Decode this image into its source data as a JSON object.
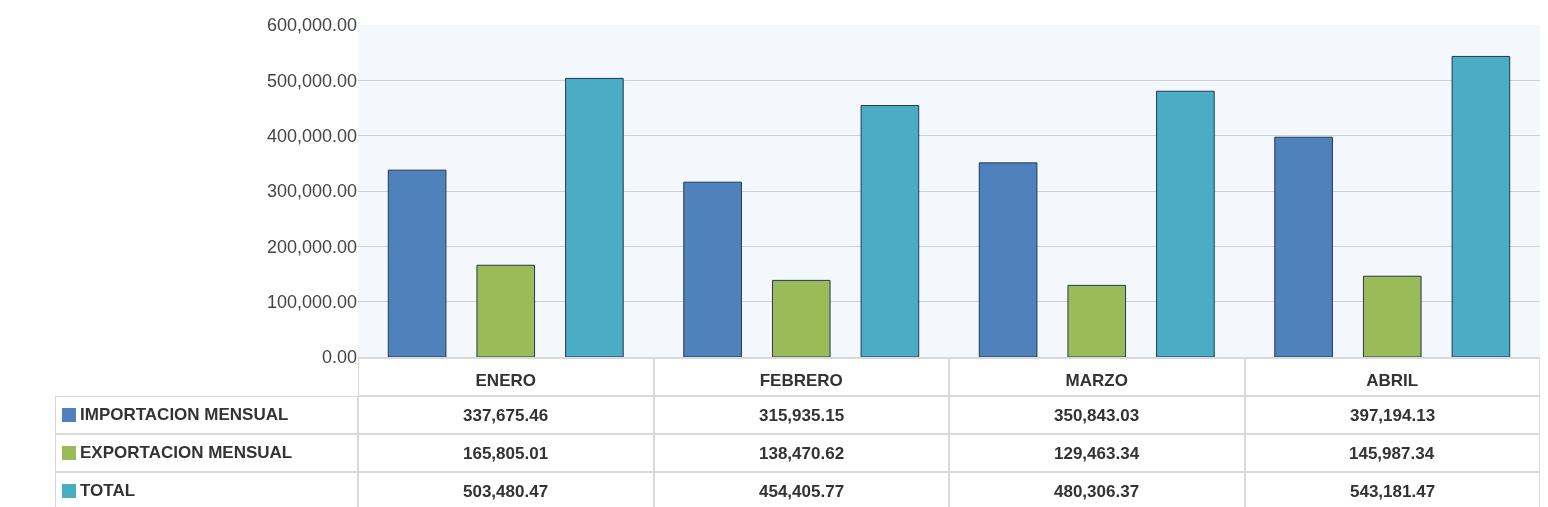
{
  "chart_data": {
    "type": "bar",
    "categories": [
      "ENERO",
      "FEBRERO",
      "MARZO",
      "ABRIL"
    ],
    "series": [
      {
        "name": "IMPORTACION  MENSUAL",
        "color": "#4f81bd",
        "values": [
          337675.46,
          315935.15,
          350843.03,
          397194.13
        ],
        "value_labels": [
          "337,675.46",
          "315,935.15",
          "350,843.03",
          "397,194.13"
        ]
      },
      {
        "name": "EXPORTACION MENSUAL",
        "color": "#9bbb59",
        "values": [
          165805.01,
          138470.62,
          129463.34,
          145987.34
        ],
        "value_labels": [
          "165,805.01",
          "138,470.62",
          "129,463.34",
          "145,987.34"
        ]
      },
      {
        "name": "TOTAL",
        "color": "#4bacc6",
        "values": [
          503480.47,
          454405.77,
          480306.37,
          543181.47
        ],
        "value_labels": [
          "503,480.47",
          "454,405.77",
          "480,306.37",
          "543,181.47"
        ]
      }
    ],
    "ylim": [
      0,
      600000
    ],
    "yticks": [
      {
        "value": 0,
        "label": "0.00"
      },
      {
        "value": 100000,
        "label": "100,000.00"
      },
      {
        "value": 200000,
        "label": "200,000.00"
      },
      {
        "value": 300000,
        "label": "300,000.00"
      },
      {
        "value": 400000,
        "label": "400,000.00"
      },
      {
        "value": 500000,
        "label": "500,000.00"
      },
      {
        "value": 600000,
        "label": "600,000.00"
      }
    ],
    "grid": "y",
    "legend": "bottom left"
  }
}
